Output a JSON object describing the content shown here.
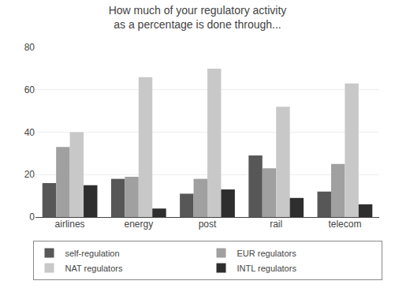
{
  "chart_data": {
    "type": "bar",
    "title": "How much of your regulatory activity\nas a percentage is done through...",
    "categories": [
      "airlines",
      "energy",
      "post",
      "rail",
      "telecom"
    ],
    "series": [
      {
        "name": "self-regulation",
        "color": "#575757",
        "values": [
          16,
          18,
          11,
          29,
          12
        ]
      },
      {
        "name": "EUR regulators",
        "color": "#a0a0a0",
        "values": [
          33,
          19,
          18,
          23,
          25
        ]
      },
      {
        "name": "NAT regulators",
        "color": "#c8c8c8",
        "values": [
          40,
          66,
          70,
          52,
          63
        ]
      },
      {
        "name": "INTL regulators",
        "color": "#2e2e2e",
        "values": [
          15,
          4,
          13,
          9,
          6
        ]
      }
    ],
    "ylim": [
      0,
      80
    ],
    "yticks": [
      0,
      20,
      40,
      60,
      80
    ],
    "grid": true,
    "legend": "bottom"
  }
}
